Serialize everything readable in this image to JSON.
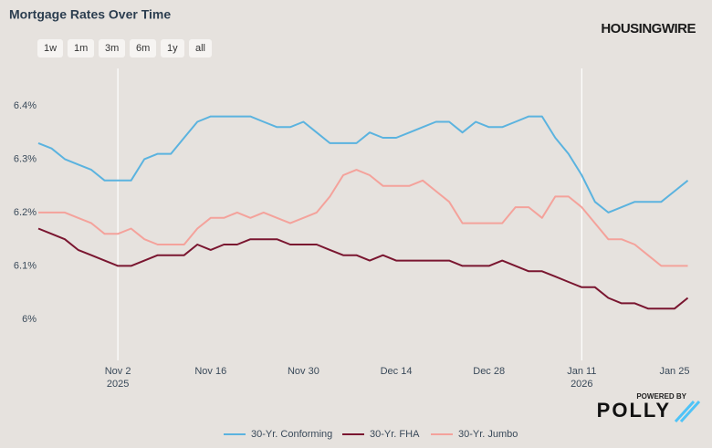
{
  "chart_data": {
    "type": "line",
    "title": "Mortgage Rates Over Time",
    "brand": "HOUSINGWIRE",
    "powered_by": "POWERED BY",
    "partner": "POLLY",
    "buttons": [
      "1w",
      "1m",
      "3m",
      "6m",
      "1y",
      "all"
    ],
    "x": [
      "2025-10-21",
      "2025-10-23",
      "2025-10-25",
      "2025-10-27",
      "2025-10-29",
      "2025-10-31",
      "2025-11-02",
      "2025-11-04",
      "2025-11-06",
      "2025-11-08",
      "2025-11-10",
      "2025-11-12",
      "2025-11-14",
      "2025-11-16",
      "2025-11-18",
      "2025-11-20",
      "2025-11-22",
      "2025-11-24",
      "2025-11-26",
      "2025-11-28",
      "2025-11-30",
      "2025-12-02",
      "2025-12-04",
      "2025-12-06",
      "2025-12-08",
      "2025-12-10",
      "2025-12-12",
      "2025-12-14",
      "2025-12-16",
      "2025-12-18",
      "2025-12-20",
      "2025-12-22",
      "2025-12-24",
      "2025-12-26",
      "2025-12-28",
      "2025-12-30",
      "2026-01-01",
      "2026-01-03",
      "2026-01-05",
      "2026-01-07",
      "2026-01-09",
      "2026-01-11",
      "2026-01-13",
      "2026-01-15",
      "2026-01-17",
      "2026-01-19",
      "2026-01-21",
      "2026-01-23",
      "2026-01-25",
      "2026-01-27"
    ],
    "series": [
      {
        "name": "30-Yr. Conforming",
        "color": "#5bb3df",
        "values": [
          6.33,
          6.32,
          6.3,
          6.29,
          6.28,
          6.26,
          6.26,
          6.26,
          6.3,
          6.31,
          6.31,
          6.34,
          6.37,
          6.38,
          6.38,
          6.38,
          6.38,
          6.37,
          6.36,
          6.36,
          6.37,
          6.35,
          6.33,
          6.33,
          6.33,
          6.35,
          6.34,
          6.34,
          6.35,
          6.36,
          6.37,
          6.37,
          6.35,
          6.37,
          6.36,
          6.36,
          6.37,
          6.38,
          6.38,
          6.34,
          6.31,
          6.27,
          6.22,
          6.2,
          6.21,
          6.22,
          6.22,
          6.22,
          6.24,
          6.26
        ]
      },
      {
        "name": "30-Yr. FHA",
        "color": "#7a1630",
        "values": [
          6.17,
          6.16,
          6.15,
          6.13,
          6.12,
          6.11,
          6.1,
          6.1,
          6.11,
          6.12,
          6.12,
          6.12,
          6.14,
          6.13,
          6.14,
          6.14,
          6.15,
          6.15,
          6.15,
          6.14,
          6.14,
          6.14,
          6.13,
          6.12,
          6.12,
          6.11,
          6.12,
          6.11,
          6.11,
          6.11,
          6.11,
          6.11,
          6.1,
          6.1,
          6.1,
          6.11,
          6.1,
          6.09,
          6.09,
          6.08,
          6.07,
          6.06,
          6.06,
          6.04,
          6.03,
          6.03,
          6.02,
          6.02,
          6.02,
          6.04
        ]
      },
      {
        "name": "30-Yr. Jumbo",
        "color": "#f4a29b",
        "values": [
          6.2,
          6.2,
          6.2,
          6.19,
          6.18,
          6.16,
          6.16,
          6.17,
          6.15,
          6.14,
          6.14,
          6.14,
          6.17,
          6.19,
          6.19,
          6.2,
          6.19,
          6.2,
          6.19,
          6.18,
          6.19,
          6.2,
          6.23,
          6.27,
          6.28,
          6.27,
          6.25,
          6.25,
          6.25,
          6.26,
          6.24,
          6.22,
          6.18,
          6.18,
          6.18,
          6.18,
          6.21,
          6.21,
          6.19,
          6.23,
          6.23,
          6.21,
          6.18,
          6.15,
          6.15,
          6.14,
          6.12,
          6.1,
          6.1,
          6.1
        ]
      }
    ],
    "xlim": [
      "2025-10-21",
      "2026-01-29"
    ],
    "xticks": [
      {
        "value": "2025-11-02",
        "label": "Nov 2",
        "year": "2025"
      },
      {
        "value": "2025-11-16",
        "label": "Nov 16"
      },
      {
        "value": "2025-11-30",
        "label": "Nov 30"
      },
      {
        "value": "2025-12-14",
        "label": "Dec 14"
      },
      {
        "value": "2025-12-28",
        "label": "Dec 28"
      },
      {
        "value": "2026-01-11",
        "label": "Jan 11",
        "year": "2026"
      },
      {
        "value": "2026-01-25",
        "label": "Jan 25"
      }
    ],
    "ylim": [
      5.94,
      6.47
    ],
    "yticks": [
      {
        "value": 6,
        "label": "6%"
      },
      {
        "value": 6.1,
        "label": "6.1%"
      },
      {
        "value": 6.2,
        "label": "6.2%"
      },
      {
        "value": 6.3,
        "label": "6.3%"
      },
      {
        "value": 6.4,
        "label": "6.4%"
      }
    ]
  }
}
